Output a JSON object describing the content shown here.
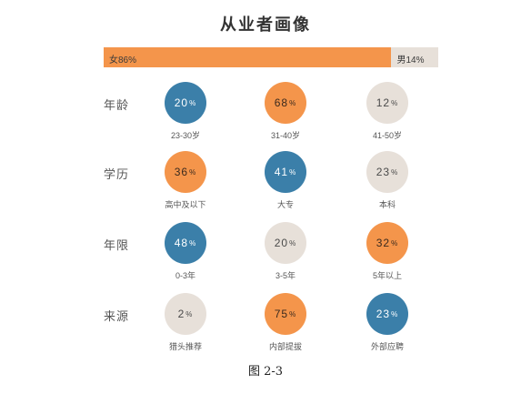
{
  "title": "从业者画像",
  "gender": [
    {
      "label": "女86%",
      "percent": 86,
      "color": "#f4954b"
    },
    {
      "label": "男14%",
      "percent": 14,
      "color": "#e7e0d9"
    }
  ],
  "colors": {
    "orange": "#f4954b",
    "blue": "#3b7fa9",
    "beige": "#e7e0d9"
  },
  "chart_data": {
    "type": "table",
    "title": "从业者画像",
    "unit": "%",
    "rows": [
      {
        "label": "年龄",
        "cells": [
          {
            "value": 20,
            "category": "23-30岁",
            "color": "blue"
          },
          {
            "value": 68,
            "category": "31-40岁",
            "color": "orange"
          },
          {
            "value": 12,
            "category": "41-50岁",
            "color": "beige"
          }
        ]
      },
      {
        "label": "学历",
        "cells": [
          {
            "value": 36,
            "category": "高中及以下",
            "color": "orange"
          },
          {
            "value": 41,
            "category": "大专",
            "color": "blue"
          },
          {
            "value": 23,
            "category": "本科",
            "color": "beige"
          }
        ]
      },
      {
        "label": "年限",
        "cells": [
          {
            "value": 48,
            "category": "0-3年",
            "color": "blue"
          },
          {
            "value": 20,
            "category": "3-5年",
            "color": "beige"
          },
          {
            "value": 32,
            "category": "5年以上",
            "color": "orange"
          }
        ]
      },
      {
        "label": "来源",
        "cells": [
          {
            "value": 2,
            "category": "猎头推荐",
            "color": "beige"
          },
          {
            "value": 75,
            "category": "内部提拔",
            "color": "orange"
          },
          {
            "value": 23,
            "category": "外部应聘",
            "color": "blue"
          }
        ]
      }
    ]
  },
  "caption": "图 2-3"
}
